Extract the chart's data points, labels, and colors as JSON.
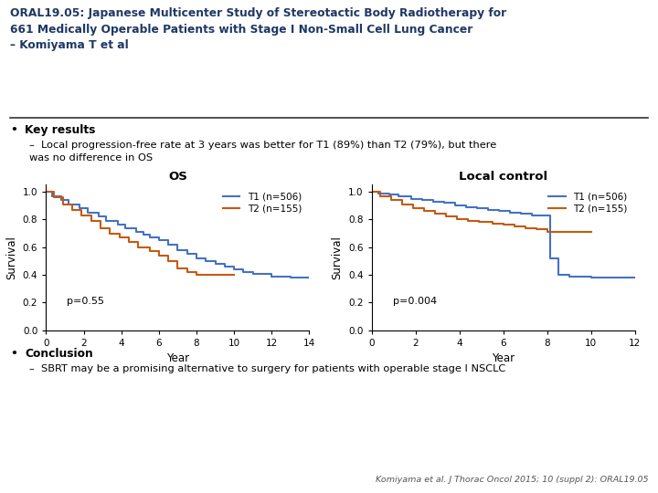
{
  "title_line1": "ORAL19.05: Japanese Multicenter Study of Stereotactic Body Radiotherapy for",
  "title_line2": "661 Medically Operable Patients with Stage I Non-Small Cell Lung Cancer",
  "title_line3": "– Komiyama T et al",
  "bullet1_header": "Key results",
  "bullet1_sub": "Local progression-free rate at 3 years was better for T1 (89%) than T2 (79%), but there\nwas no difference in OS",
  "bullet2_header": "Conclusion",
  "bullet2_sub": "SBRT may be a promising alternative to surgery for patients with operable stage I NSCLC",
  "footnote": "Komiyama et al. J Thorac Oncol 2015; 10 (suppl 2): ORAL19.05",
  "os_title": "OS",
  "lc_title": "Local control",
  "color_t1": "#4472C4",
  "color_t2": "#C55A11",
  "legend_t1": "T1 (n=506)",
  "legend_t2": "T2 (n=155)",
  "os_pvalue": "p=0.55",
  "lc_pvalue": "p=0.004",
  "os_t1_x": [
    0,
    0.3,
    0.8,
    1.2,
    1.8,
    2.2,
    2.8,
    3.2,
    3.8,
    4.2,
    4.8,
    5.2,
    5.5,
    6.0,
    6.5,
    7.0,
    7.5,
    8.0,
    8.5,
    9.0,
    9.5,
    10.0,
    10.5,
    11.0,
    12.0,
    13.0,
    14.0
  ],
  "os_t1_y": [
    1.0,
    0.97,
    0.94,
    0.91,
    0.88,
    0.85,
    0.82,
    0.79,
    0.76,
    0.74,
    0.71,
    0.69,
    0.67,
    0.65,
    0.62,
    0.58,
    0.55,
    0.52,
    0.5,
    0.48,
    0.46,
    0.44,
    0.42,
    0.41,
    0.39,
    0.38,
    0.38
  ],
  "os_t2_x": [
    0,
    0.4,
    0.9,
    1.4,
    1.9,
    2.4,
    2.9,
    3.4,
    3.9,
    4.4,
    4.9,
    5.5,
    6.0,
    6.5,
    7.0,
    7.5,
    8.0,
    9.0,
    10.0
  ],
  "os_t2_y": [
    1.0,
    0.96,
    0.91,
    0.87,
    0.83,
    0.79,
    0.74,
    0.7,
    0.67,
    0.64,
    0.6,
    0.57,
    0.54,
    0.5,
    0.45,
    0.42,
    0.4,
    0.4,
    0.4
  ],
  "lc_t1_x": [
    0,
    0.3,
    0.8,
    1.2,
    1.8,
    2.3,
    2.8,
    3.3,
    3.8,
    4.3,
    4.8,
    5.3,
    5.8,
    6.3,
    6.8,
    7.3,
    7.8,
    8.0,
    8.15,
    8.5,
    9.0,
    10.0,
    11.0,
    12.0
  ],
  "lc_t1_y": [
    1.0,
    0.99,
    0.98,
    0.97,
    0.95,
    0.94,
    0.93,
    0.92,
    0.9,
    0.89,
    0.88,
    0.87,
    0.86,
    0.85,
    0.84,
    0.83,
    0.83,
    0.83,
    0.52,
    0.4,
    0.39,
    0.38,
    0.38,
    0.38
  ],
  "lc_t2_x": [
    0,
    0.4,
    0.9,
    1.4,
    1.9,
    2.4,
    2.9,
    3.4,
    3.9,
    4.4,
    4.9,
    5.5,
    6.0,
    6.5,
    7.0,
    7.5,
    8.0,
    8.5,
    9.0,
    10.0
  ],
  "lc_t2_y": [
    1.0,
    0.97,
    0.94,
    0.91,
    0.88,
    0.86,
    0.84,
    0.82,
    0.8,
    0.79,
    0.78,
    0.77,
    0.76,
    0.75,
    0.74,
    0.73,
    0.71,
    0.71,
    0.71,
    0.71
  ],
  "os_xlim": [
    0,
    14
  ],
  "os_xticks": [
    0,
    2,
    4,
    6,
    8,
    10,
    12,
    14
  ],
  "lc_xlim": [
    0,
    12
  ],
  "lc_xticks": [
    0,
    2,
    4,
    6,
    8,
    10,
    12
  ],
  "ylim": [
    0,
    1.05
  ],
  "yticks": [
    0,
    0.2,
    0.4,
    0.6,
    0.8,
    1.0
  ],
  "ylabel": "Survival",
  "xlabel": "Year",
  "bg_color": "#FFFFFF",
  "text_color": "#000000",
  "title_color": "#1F3864"
}
